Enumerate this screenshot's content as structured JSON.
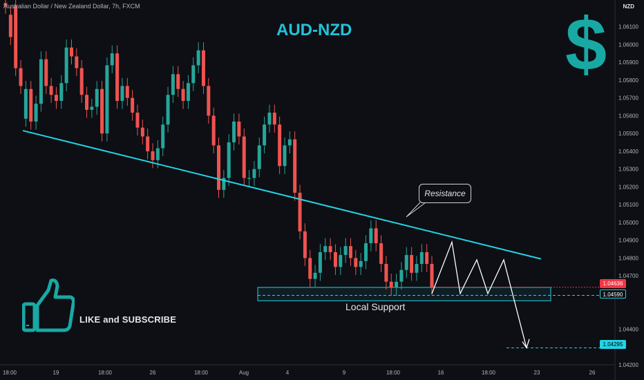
{
  "header": {
    "symbol_line": "Australian Dollar / New Zealand Dollar, 7h, FXCM"
  },
  "title": "AUD-NZD",
  "currency": "NZD",
  "dollar_icon": "dollar-icon",
  "resistance_label": "Resistance",
  "support_label": "Local Support",
  "cta": "LIKE and SUBSCRIBE",
  "price_labels": {
    "current": "1.04636",
    "support": "1.04590",
    "target": "1.04295"
  },
  "colors": {
    "bull": "#26a69a",
    "bear": "#ef5350",
    "trendline": "#22d3e6",
    "bg": "#0d0f14",
    "current_tag": "#f23645",
    "support_tag": "#22d3e6"
  },
  "chart_data": {
    "type": "candlestick",
    "ylim": [
      1.042,
      1.0625
    ],
    "y_ticks": [
      "1.06100",
      "1.06000",
      "1.05900",
      "1.05800",
      "1.05700",
      "1.05600",
      "1.05500",
      "1.05400",
      "1.05300",
      "1.05200",
      "1.05100",
      "1.05000",
      "1.04900",
      "1.04800",
      "1.04700",
      "1.04400",
      "1.04200"
    ],
    "x_ticks": [
      "18:00",
      "19",
      "18:00",
      "26",
      "18:00",
      "Aug",
      "4",
      "9",
      "18:00",
      "16",
      "18:00",
      "23",
      "26"
    ],
    "candles": [
      [
        1.06233,
        1.06217
      ],
      [
        1.06167,
        1.06042
      ],
      [
        1.06217,
        1.05867
      ],
      [
        1.05867,
        1.05767
      ],
      [
        1.05583,
        1.0575
      ],
      [
        1.0575,
        1.05567
      ],
      [
        1.05567,
        1.05667
      ],
      [
        1.05667,
        1.05917
      ],
      [
        1.05917,
        1.05767
      ],
      [
        1.05767,
        1.05717
      ],
      [
        1.05717,
        1.05683
      ],
      [
        1.05683,
        1.05783
      ],
      [
        1.05783,
        1.05983
      ],
      [
        1.05983,
        1.05933
      ],
      [
        1.05933,
        1.05867
      ],
      [
        1.05867,
        1.05717
      ],
      [
        1.05717,
        1.05633
      ],
      [
        1.05633,
        1.0565
      ],
      [
        1.0565,
        1.0575
      ],
      [
        1.0575,
        1.055
      ],
      [
        1.055,
        1.05883
      ],
      [
        1.05883,
        1.0595
      ],
      [
        1.0595,
        1.05683
      ],
      [
        1.05683,
        1.05767
      ],
      [
        1.05767,
        1.057
      ],
      [
        1.057,
        1.05617
      ],
      [
        1.05617,
        1.05533
      ],
      [
        1.05533,
        1.05483
      ],
      [
        1.05483,
        1.054
      ],
      [
        1.054,
        1.0535
      ],
      [
        1.0535,
        1.05417
      ],
      [
        1.05417,
        1.0555
      ],
      [
        1.0555,
        1.05717
      ],
      [
        1.05717,
        1.05833
      ],
      [
        1.05833,
        1.0575
      ],
      [
        1.0575,
        1.05683
      ],
      [
        1.05683,
        1.05783
      ],
      [
        1.05783,
        1.05883
      ],
      [
        1.05883,
        1.05967
      ],
      [
        1.05967,
        1.05767
      ],
      [
        1.05767,
        1.056
      ],
      [
        1.056,
        1.05433
      ],
      [
        1.05433,
        1.05183
      ],
      [
        1.05183,
        1.0525
      ],
      [
        1.0525,
        1.0545
      ],
      [
        1.0545,
        1.05567
      ],
      [
        1.05567,
        1.05483
      ],
      [
        1.05483,
        1.0525
      ],
      [
        1.0525,
        1.0525
      ],
      [
        1.0525,
        1.053
      ],
      [
        1.053,
        1.05433
      ],
      [
        1.05433,
        1.0555
      ],
      [
        1.0555,
        1.05617
      ],
      [
        1.05617,
        1.0555
      ],
      [
        1.0555,
        1.05317
      ],
      [
        1.05317,
        1.05433
      ],
      [
        1.05433,
        1.05467
      ],
      [
        1.05467,
        1.05167
      ],
      [
        1.05167,
        1.0495
      ],
      [
        1.0495,
        1.048
      ],
      [
        1.048,
        1.04683
      ],
      [
        1.04683,
        1.04717
      ],
      [
        1.04717,
        1.04833
      ],
      [
        1.04833,
        1.04867
      ],
      [
        1.04867,
        1.04833
      ],
      [
        1.04833,
        1.0475
      ],
      [
        1.0475,
        1.04817
      ],
      [
        1.04817,
        1.04867
      ],
      [
        1.04867,
        1.048
      ],
      [
        1.048,
        1.0475
      ],
      [
        1.0475,
        1.04783
      ],
      [
        1.04783,
        1.04883
      ],
      [
        1.04883,
        1.04967
      ],
      [
        1.04967,
        1.04883
      ],
      [
        1.04883,
        1.04767
      ],
      [
        1.04767,
        1.04667
      ],
      [
        1.04667,
        1.04633
      ],
      [
        1.04633,
        1.04667
      ],
      [
        1.04667,
        1.04733
      ],
      [
        1.04733,
        1.04817
      ],
      [
        1.04817,
        1.04717
      ],
      [
        1.04717,
        1.04767
      ],
      [
        1.04767,
        1.04833
      ],
      [
        1.04833,
        1.04767
      ],
      [
        1.04767,
        1.04636
      ]
    ],
    "projection": [
      [
        1.04636,
        1.046
      ],
      [
        1.046,
        1.0489
      ],
      [
        1.0489,
        1.046
      ],
      [
        1.046,
        1.0479
      ],
      [
        1.0479,
        1.046
      ],
      [
        1.046,
        1.0479
      ],
      [
        1.0479,
        1.046
      ],
      [
        1.046,
        1.04295
      ]
    ],
    "resistance_line": [
      [
        1.05516,
        0
      ],
      [
        1.04795,
        1
      ]
    ],
    "support_zone": [
      1.0456,
      1.04635
    ]
  }
}
